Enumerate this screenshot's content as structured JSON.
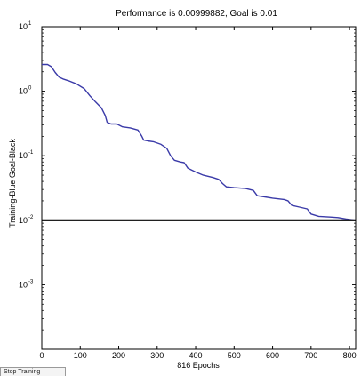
{
  "chart_data": {
    "type": "line",
    "title": "Performance is 0.00999882, Goal is 0.01",
    "xlabel": "816 Epochs",
    "ylabel": "Training-Blue  Goal-Black",
    "xlim": [
      0,
      816
    ],
    "ylim": [
      0.0001,
      10
    ],
    "yscale": "log",
    "x_ticks": [
      "0",
      "100",
      "200",
      "300",
      "400",
      "500",
      "600",
      "700",
      "800"
    ],
    "y_ticks": [
      {
        "value": 10,
        "base": "10",
        "exp": "1"
      },
      {
        "value": 1,
        "base": "10",
        "exp": "0"
      },
      {
        "value": 0.1,
        "base": "10",
        "exp": "-1"
      },
      {
        "value": 0.01,
        "base": "10",
        "exp": "-2"
      },
      {
        "value": 0.001,
        "base": "10",
        "exp": "-3"
      }
    ],
    "grid": false,
    "series": [
      {
        "color": "#3a3aa8",
        "x": [
          0,
          15,
          25,
          35,
          45,
          55,
          70,
          90,
          110,
          125,
          140,
          155,
          165,
          170,
          180,
          195,
          210,
          230,
          250,
          260,
          265,
          275,
          290,
          310,
          325,
          335,
          345,
          360,
          370,
          380,
          400,
          420,
          445,
          460,
          470,
          480,
          500,
          530,
          550,
          560,
          580,
          600,
          630,
          640,
          650,
          670,
          690,
          700,
          720,
          750,
          770,
          790,
          805,
          816
        ],
        "values": [
          2.6,
          2.6,
          2.4,
          1.95,
          1.65,
          1.55,
          1.45,
          1.3,
          1.1,
          0.85,
          0.68,
          0.55,
          0.42,
          0.33,
          0.31,
          0.31,
          0.28,
          0.27,
          0.25,
          0.2,
          0.175,
          0.17,
          0.165,
          0.15,
          0.13,
          0.1,
          0.085,
          0.08,
          0.078,
          0.064,
          0.056,
          0.05,
          0.046,
          0.043,
          0.037,
          0.033,
          0.032,
          0.031,
          0.029,
          0.024,
          0.023,
          0.022,
          0.021,
          0.02,
          0.017,
          0.016,
          0.015,
          0.0125,
          0.0115,
          0.0112,
          0.011,
          0.0105,
          0.0102,
          0.00999882
        ]
      },
      {
        "color": "#000000",
        "x": [
          0,
          816
        ],
        "values": [
          0.01,
          0.01
        ]
      }
    ]
  },
  "controls": {
    "stop_label": "Stop Training"
  }
}
